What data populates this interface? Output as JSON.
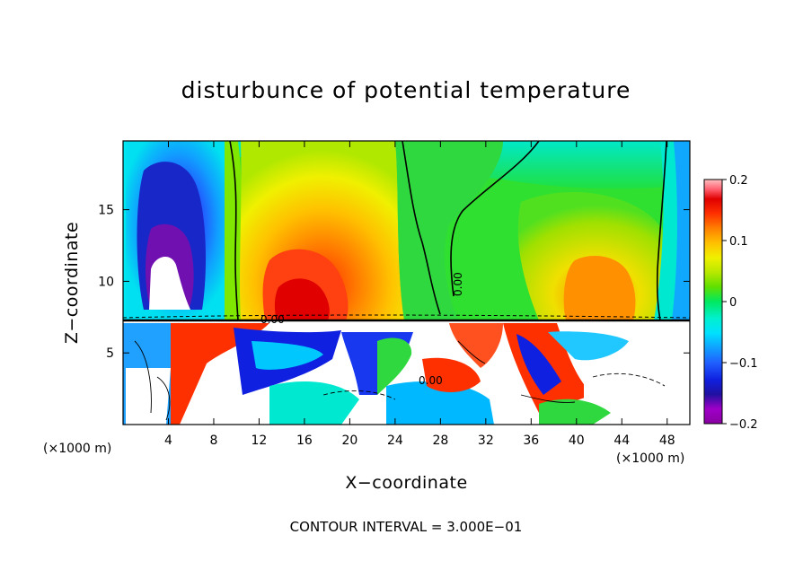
{
  "chart_data": {
    "type": "heatmap",
    "title": "disturbunce of potential temperature",
    "xlabel": "X−coordinate",
    "ylabel": "Z−coordinate",
    "x_unit_label": "(×1000 m)",
    "x_unit_label_right": "(×1000 m)",
    "footer": "CONTOUR INTERVAL = 3.000E−01",
    "x_ticks": [
      4,
      8,
      12,
      16,
      20,
      24,
      28,
      32,
      36,
      40,
      44,
      48
    ],
    "y_ticks": [
      5,
      10,
      15
    ],
    "xlim": [
      0,
      50
    ],
    "ylim": [
      0,
      19.8
    ],
    "colorbar": {
      "min": -0.2,
      "max": 0.2,
      "tick_labels": [
        "0.2",
        "0.1",
        "0",
        "−0.1",
        "−0.2"
      ],
      "tick_values": [
        0.2,
        0.1,
        0,
        -0.1,
        -0.2
      ],
      "colors": [
        "#8800a0",
        "#a000c8",
        "#3010a0",
        "#1020e0",
        "#2050ff",
        "#1090ff",
        "#00d8ff",
        "#00f0e0",
        "#00e870",
        "#30e030",
        "#70e000",
        "#b0e800",
        "#e8f000",
        "#ffd000",
        "#ffa000",
        "#ff7000",
        "#ff3000",
        "#e00000",
        "#ff5060",
        "#ff9090",
        "#ffc0c0"
      ]
    },
    "contour_labels": [
      "0.00",
      "0.00",
      "0.00"
    ]
  }
}
